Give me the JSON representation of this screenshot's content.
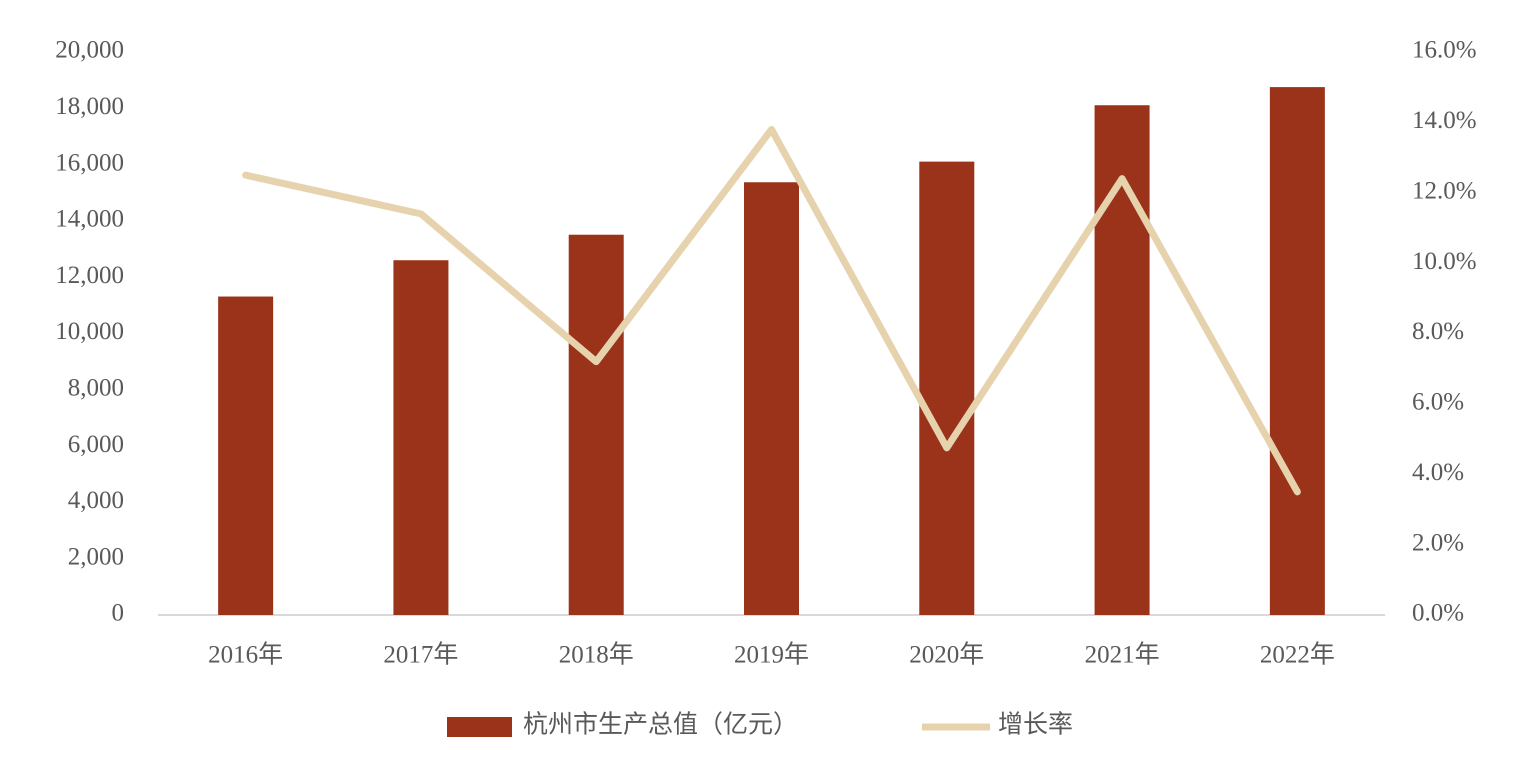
{
  "chart_data": {
    "type": "bar-line",
    "categories": [
      "2016年",
      "2017年",
      "2018年",
      "2019年",
      "2020年",
      "2021年",
      "2022年"
    ],
    "series": [
      {
        "name": "杭州市生产总值（亿元）",
        "type": "bar",
        "color": "#9a3319",
        "values": [
          11313,
          12603,
          13509,
          15373,
          16106,
          18109,
          18753
        ]
      },
      {
        "name": "增长率",
        "type": "line",
        "axis": "y2",
        "color": "#e6d3ae",
        "values": [
          12.5,
          11.4,
          7.2,
          13.8,
          4.75,
          12.4,
          3.5
        ]
      }
    ],
    "ylim": [
      0,
      20000
    ],
    "yticks": [
      0,
      {
        "value": 2000,
        "label": "2,000"
      },
      {
        "value": 4000,
        "label": "4,000"
      },
      {
        "value": 6000,
        "label": "6,000"
      },
      {
        "value": 8000,
        "label": "8,000"
      },
      {
        "value": 10000,
        "label": "10,000"
      },
      {
        "value": 12000,
        "label": "12,000"
      },
      {
        "value": 14000,
        "label": "14,000"
      },
      {
        "value": 16000,
        "label": "16,000"
      },
      {
        "value": 18000,
        "label": "18,000"
      },
      {
        "value": 20000,
        "label": "20,000"
      }
    ],
    "y2lim": [
      0,
      16
    ],
    "y2ticks": [
      {
        "value": 0,
        "label": "0.0%"
      },
      {
        "value": 2,
        "label": "2.0%"
      },
      {
        "value": 4,
        "label": "4.0%"
      },
      {
        "value": 6,
        "label": "6.0%"
      },
      {
        "value": 8,
        "label": "8.0%"
      },
      {
        "value": 10,
        "label": "10.0%"
      },
      {
        "value": 12,
        "label": "12.0%"
      },
      {
        "value": 14,
        "label": "14.0%"
      },
      {
        "value": 16,
        "label": "16.0%"
      }
    ],
    "grid": false,
    "legend": "bottom"
  }
}
